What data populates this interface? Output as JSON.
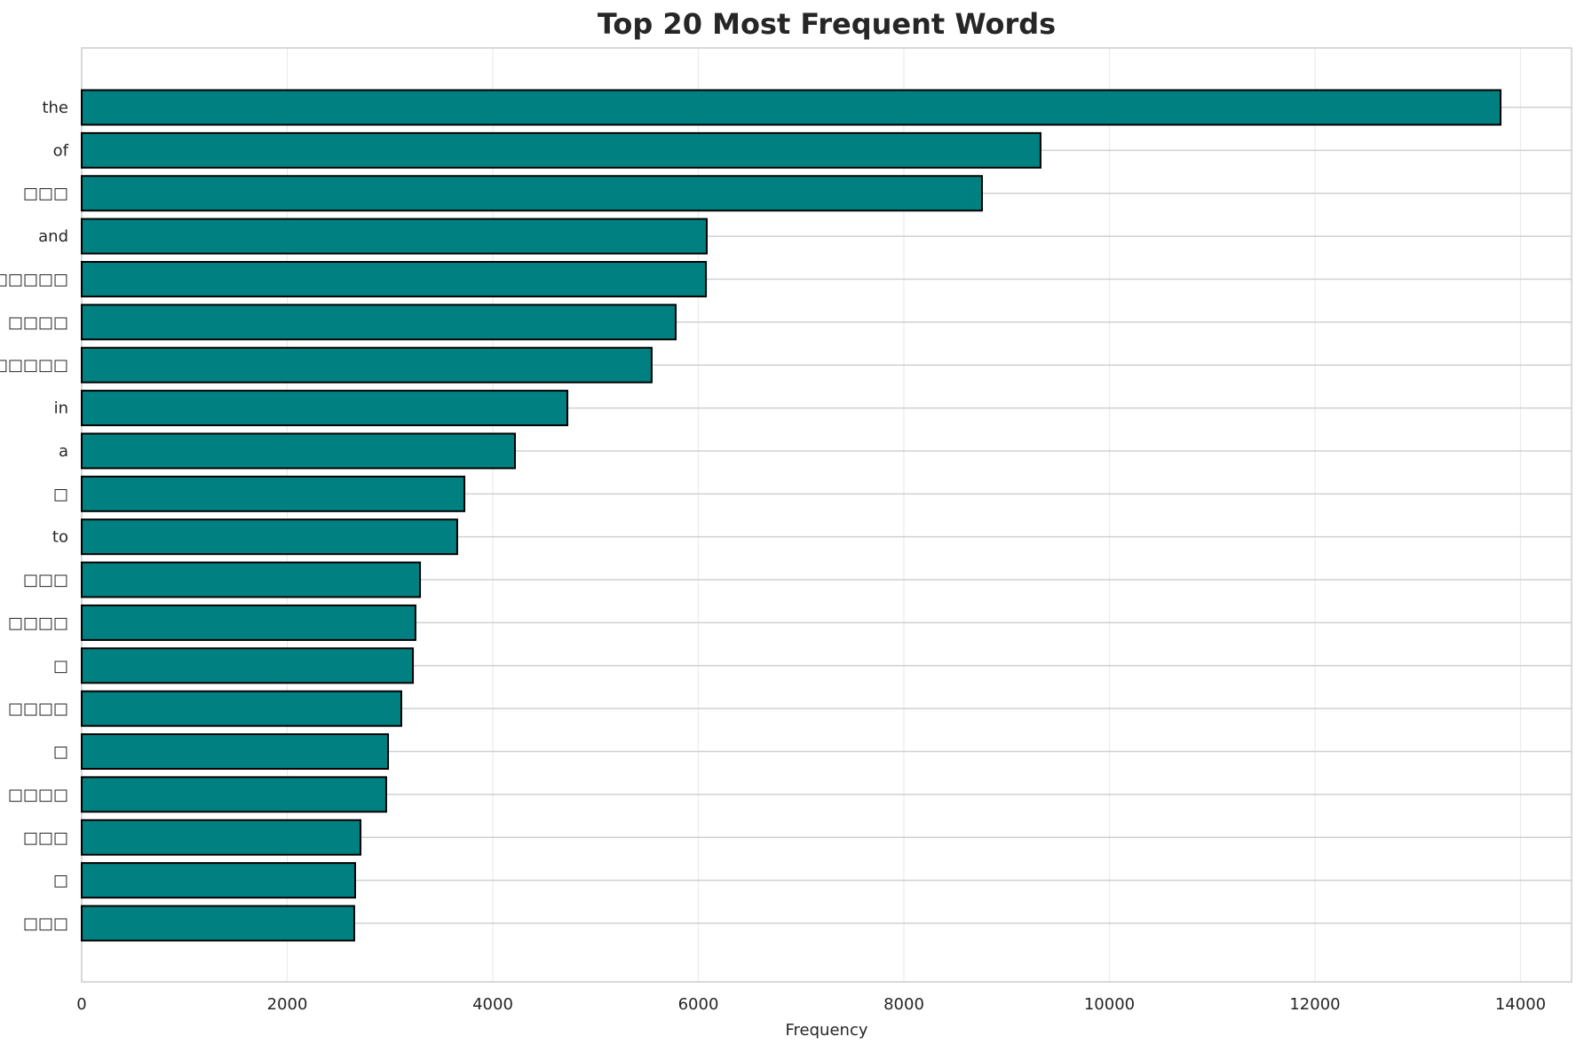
{
  "chart_data": {
    "type": "bar",
    "orientation": "horizontal",
    "title": "Top 20 Most Frequent Words",
    "xlabel": "Frequency",
    "ylabel": "",
    "xlim": [
      0,
      14500
    ],
    "xticks": [
      0,
      2000,
      4000,
      6000,
      8000,
      10000,
      12000,
      14000
    ],
    "grid": true,
    "legend": null,
    "bar_color": "#008080",
    "bar_edge_color": "#000000",
    "categories": [
      "the",
      "of",
      "□□□",
      "and",
      "□□□□□",
      "□□□□",
      "□□□□□",
      "in",
      "a",
      "□",
      "to",
      "□□□",
      "□□□□",
      "□",
      "□□□□",
      "□",
      "□□□□",
      "□□□",
      "□",
      "□□□"
    ],
    "values": [
      13806,
      9330,
      8760,
      6082,
      6074,
      5780,
      5546,
      4726,
      4216,
      3724,
      3654,
      3292,
      3248,
      3223,
      3110,
      2981,
      2963,
      2713,
      2661,
      2652
    ],
    "note": "Box glyphs (□) represent CJK characters rendered as missing-glyph boxes in the original image"
  }
}
